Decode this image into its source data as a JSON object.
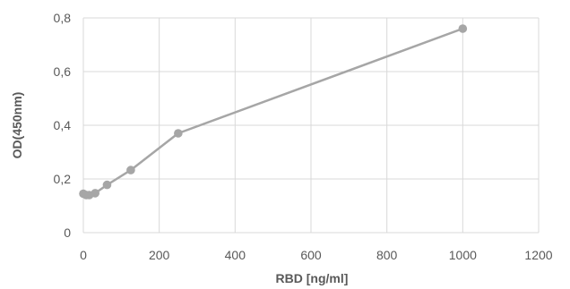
{
  "chart_data": {
    "type": "scatter",
    "title": "",
    "xlabel": "RBD [ng/ml]",
    "ylabel": "OD(450nm)",
    "xlim": [
      0,
      1200
    ],
    "ylim": [
      0,
      0.8
    ],
    "x_ticks": [
      0,
      200,
      400,
      600,
      800,
      1000,
      1200
    ],
    "y_ticks": [
      0,
      0.2,
      0.4,
      0.6,
      0.8
    ],
    "x_tick_labels": [
      "0",
      "200",
      "400",
      "600",
      "800",
      "1000",
      "1200"
    ],
    "y_tick_labels": [
      "0",
      "0,2",
      "0,4",
      "0,6",
      "0,8"
    ],
    "grid": true,
    "legend": "none",
    "series": [
      {
        "style": "line-with-markers",
        "color": "#a6a6a6",
        "x": [
          0,
          7.8,
          15.6,
          31.25,
          62.5,
          125,
          250,
          1000
        ],
        "y": [
          0.145,
          0.14,
          0.14,
          0.147,
          0.178,
          0.233,
          0.37,
          0.76
        ]
      }
    ]
  }
}
